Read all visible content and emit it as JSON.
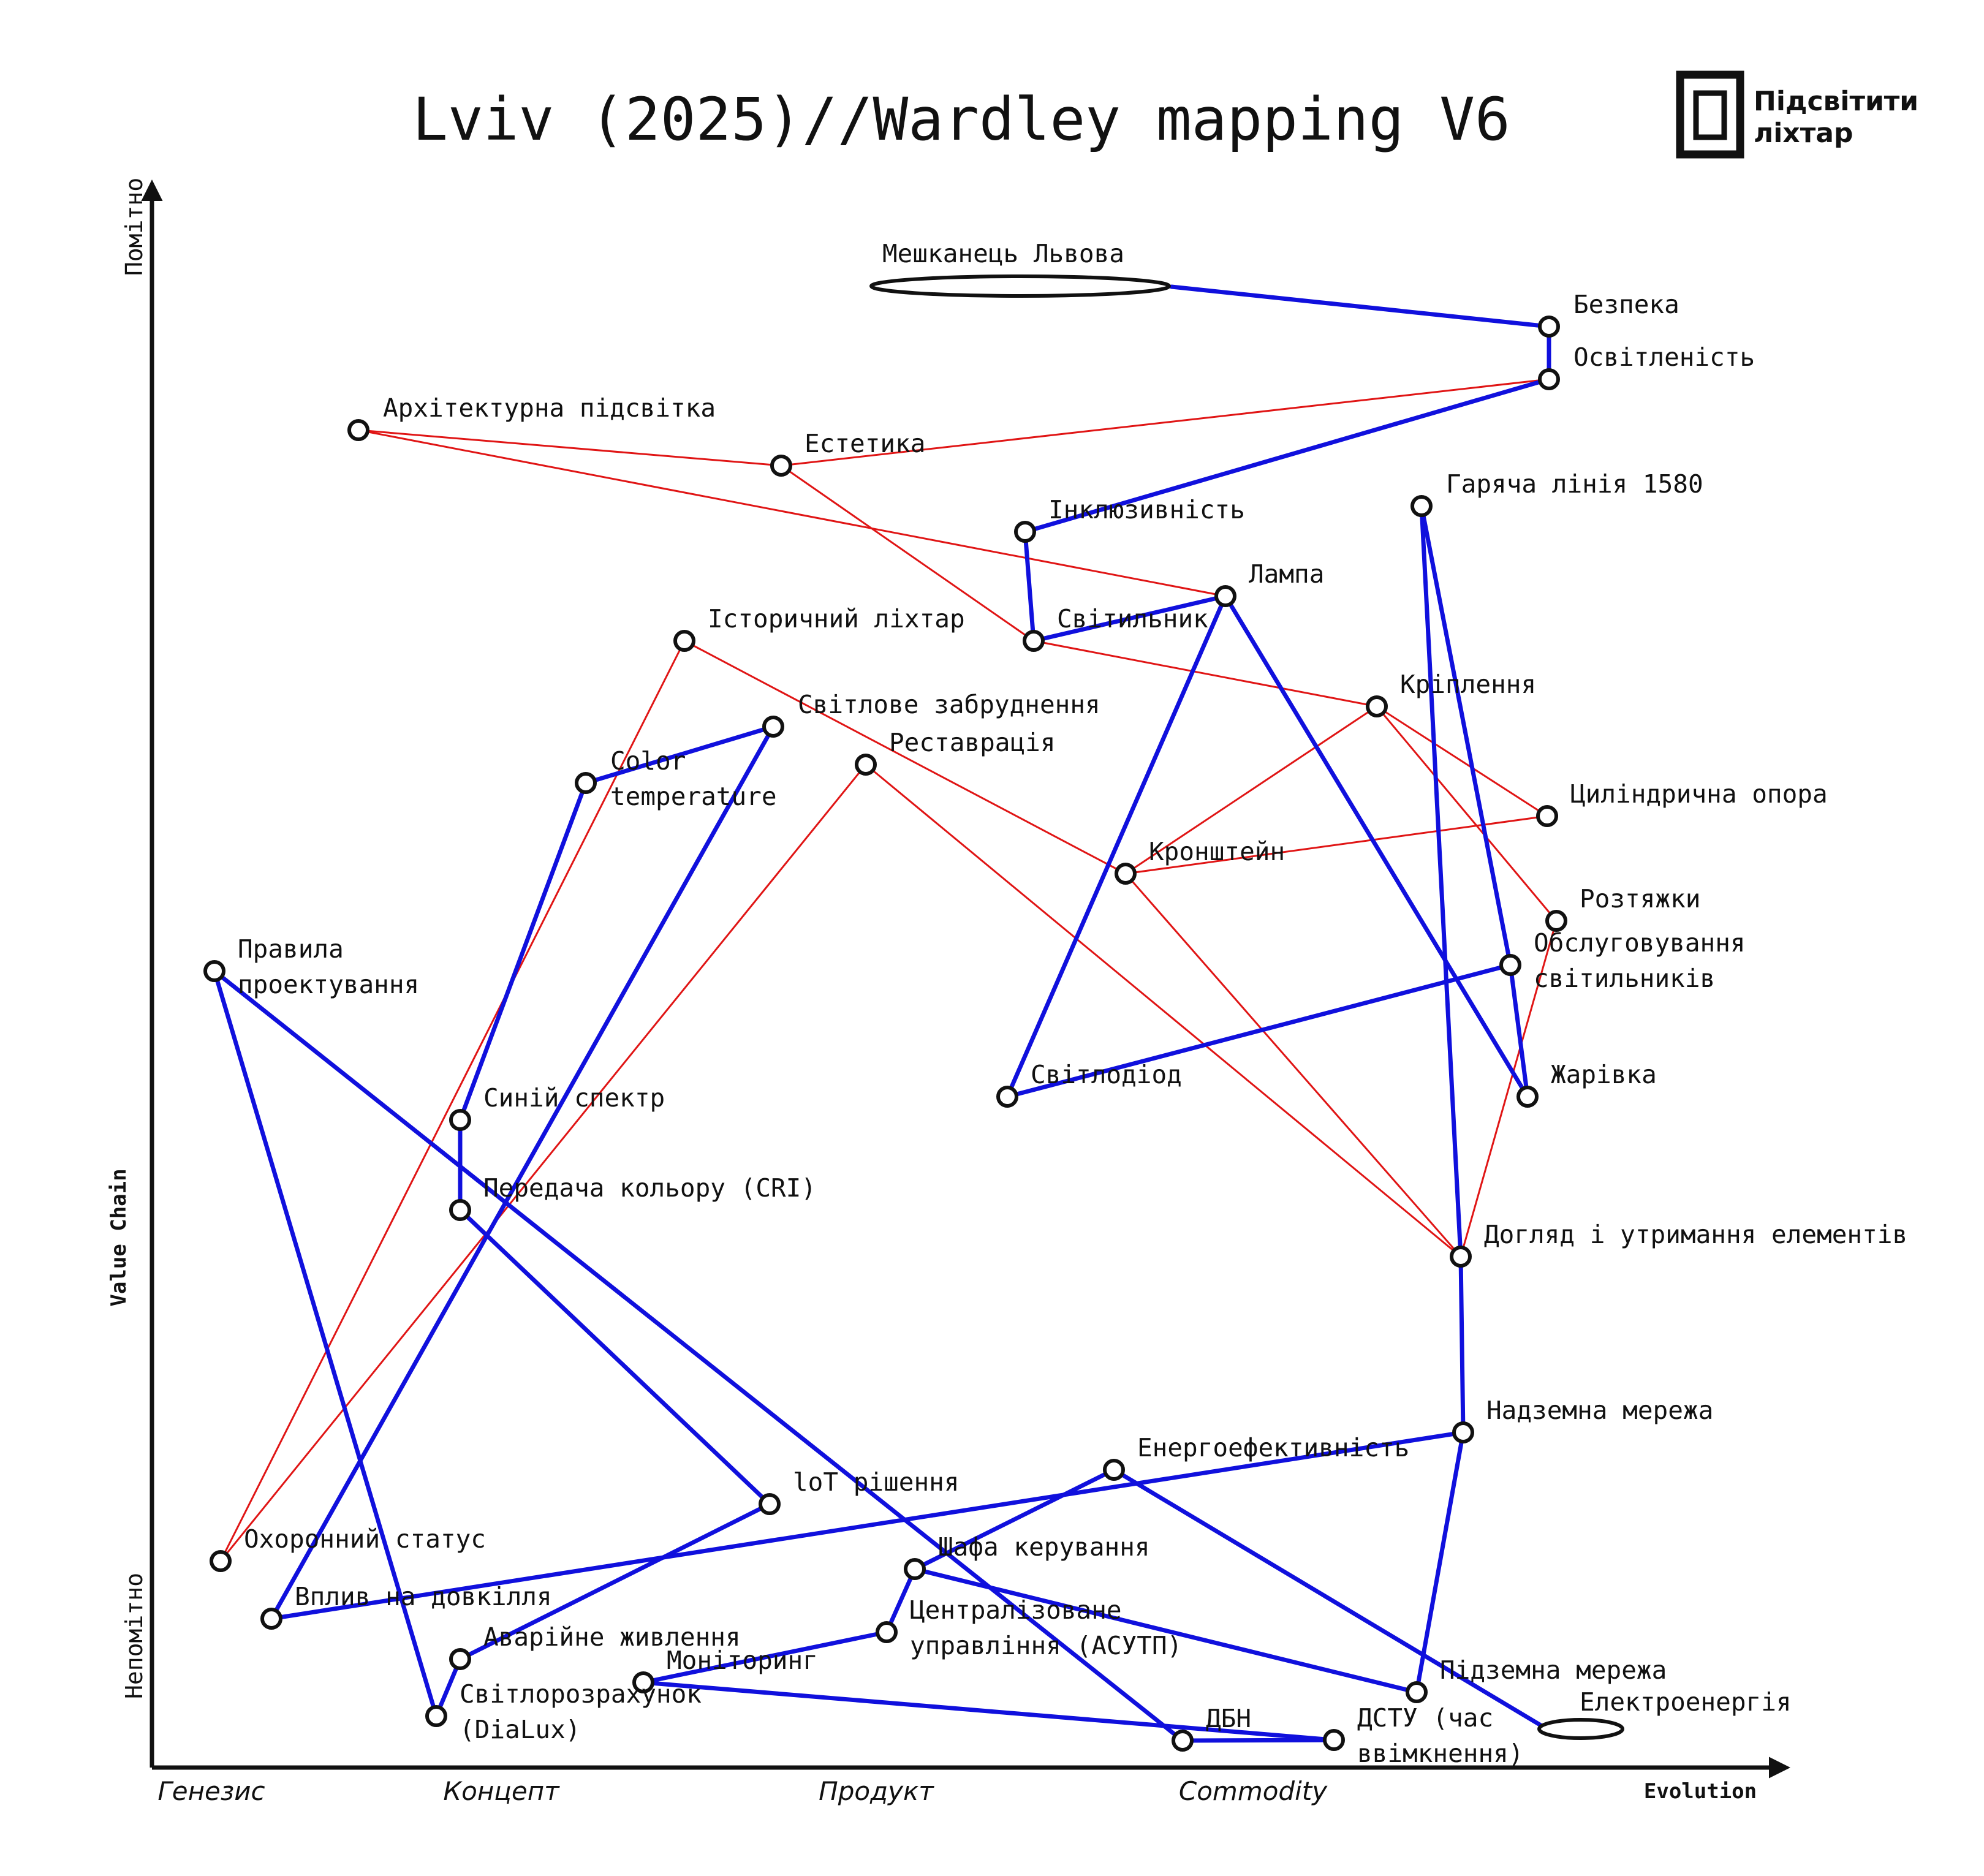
{
  "title": "Lviv (2025)//Wardley mapping V6",
  "brand": {
    "line1": "Підсвітити",
    "line2": "ліхтар",
    "icon": "frame-logo-icon"
  },
  "axes": {
    "y_top": "Помітно",
    "y_bottom": "Непомітно",
    "y_title": "Value Chain",
    "x_title": "Evolution",
    "stages": [
      "Генезис",
      "Концепт",
      "Продукт",
      "Commodity"
    ]
  },
  "colors": {
    "dependency": "#1010dd",
    "relation": "#e01515",
    "node_stroke": "#111111"
  },
  "user": {
    "label": "Мешканець Львова"
  },
  "energy": {
    "label": "Електроенергія"
  },
  "nodes": [
    {
      "id": "bezpeka",
      "label": [
        "Безпека"
      ]
    },
    {
      "id": "osvitl",
      "label": [
        "Освітленість"
      ]
    },
    {
      "id": "arch",
      "label": [
        "Архітектурна підсвітка"
      ]
    },
    {
      "id": "estet",
      "label": [
        "Естетика"
      ]
    },
    {
      "id": "inkl",
      "label": [
        "Інклюзивність"
      ]
    },
    {
      "id": "hotline",
      "label": [
        "Гаряча лінія 1580"
      ]
    },
    {
      "id": "lampa",
      "label": [
        "Лампа"
      ]
    },
    {
      "id": "hist",
      "label": [
        "Історичний ліхтар"
      ]
    },
    {
      "id": "svitylnyk",
      "label": [
        "Світильник"
      ]
    },
    {
      "id": "kripl",
      "label": [
        "Кріплення"
      ]
    },
    {
      "id": "zabrud",
      "label": [
        "Світлове забруднення"
      ]
    },
    {
      "id": "color",
      "label": [
        "Color",
        "temperature"
      ]
    },
    {
      "id": "restav",
      "label": [
        "Реставрація"
      ]
    },
    {
      "id": "cylinder",
      "label": [
        "Циліндрична опора"
      ]
    },
    {
      "id": "kronsh",
      "label": [
        "Кронштейн"
      ]
    },
    {
      "id": "roztyazh",
      "label": [
        "Розтяжки"
      ]
    },
    {
      "id": "pravyla",
      "label": [
        "Правила",
        "проектування"
      ]
    },
    {
      "id": "obslug",
      "label": [
        "Обслуговування",
        "світильників"
      ]
    },
    {
      "id": "svitlodiod",
      "label": [
        "Світлодіод"
      ]
    },
    {
      "id": "zharivka",
      "label": [
        "Жарівка"
      ]
    },
    {
      "id": "syniy",
      "label": [
        "Синій спектр"
      ]
    },
    {
      "id": "cri",
      "label": [
        "Передача кольору (CRI)"
      ]
    },
    {
      "id": "dohlyad",
      "label": [
        "Догляд і утримання елементів"
      ]
    },
    {
      "id": "nadzemna",
      "label": [
        "Надземна мережа"
      ]
    },
    {
      "id": "energo",
      "label": [
        "Енергоефективність"
      ]
    },
    {
      "id": "iot",
      "label": [
        "loT рішення"
      ]
    },
    {
      "id": "okhor",
      "label": [
        "Охоронний статус"
      ]
    },
    {
      "id": "shafa",
      "label": [
        "Шафа керування"
      ]
    },
    {
      "id": "vplyv",
      "label": [
        "Вплив на довкілля"
      ]
    },
    {
      "id": "tsentr",
      "label": [
        "Централізоване",
        "управління (АСУТП)"
      ]
    },
    {
      "id": "avar",
      "label": [
        "Аварійне живлення"
      ]
    },
    {
      "id": "monit",
      "label": [
        "Моніторинг"
      ]
    },
    {
      "id": "pidzem",
      "label": [
        "Підземна мережа"
      ]
    },
    {
      "id": "dialux",
      "label": [
        "Світлорозрахунок",
        "(DiaLux)"
      ]
    },
    {
      "id": "dbn",
      "label": [
        "ДБН"
      ]
    },
    {
      "id": "dstu",
      "label": [
        "ДСТУ (час",
        "ввімкнення)"
      ]
    }
  ],
  "blue_links": [
    [
      "user",
      "bezpeka"
    ],
    [
      "bezpeka",
      "osvitl"
    ],
    [
      "osvitl",
      "inkl"
    ],
    [
      "inkl",
      "svitylnyk"
    ],
    [
      "svitylnyk",
      "lampa"
    ],
    [
      "lampa",
      "svitlodiod"
    ],
    [
      "lampa",
      "zharivka"
    ],
    [
      "svitlodiod",
      "obslug"
    ],
    [
      "hotline",
      "obslug"
    ],
    [
      "obslug",
      "zharivka"
    ],
    [
      "hotline",
      "dohlyad"
    ],
    [
      "dohlyad",
      "nadzemna"
    ],
    [
      "nadzemna",
      "vplyv"
    ],
    [
      "nadzemna",
      "pidzem"
    ],
    [
      "color",
      "zabrud"
    ],
    [
      "color",
      "syniy"
    ],
    [
      "syniy",
      "cri"
    ],
    [
      "cri",
      "iot"
    ],
    [
      "iot",
      "avar"
    ],
    [
      "avar",
      "dialux"
    ],
    [
      "zabrud",
      "vplyv"
    ],
    [
      "pravyla",
      "dialux"
    ],
    [
      "pravyla",
      "dbn"
    ],
    [
      "dbn",
      "dstu"
    ],
    [
      "monit",
      "dstu"
    ],
    [
      "monit",
      "tsentr"
    ],
    [
      "tsentr",
      "shafa"
    ],
    [
      "shafa",
      "energo"
    ],
    [
      "shafa",
      "pidzem"
    ],
    [
      "energo",
      "energy"
    ]
  ],
  "red_links": [
    [
      "arch",
      "estet"
    ],
    [
      "estet",
      "osvitl"
    ],
    [
      "arch",
      "lampa"
    ],
    [
      "estet",
      "svitylnyk"
    ],
    [
      "svitylnyk",
      "kripl"
    ],
    [
      "kripl",
      "kronsh"
    ],
    [
      "kripl",
      "cylinder"
    ],
    [
      "kripl",
      "roztyazh"
    ],
    [
      "kronsh",
      "cylinder"
    ],
    [
      "roztyazh",
      "dohlyad"
    ],
    [
      "hist",
      "kronsh"
    ],
    [
      "hist",
      "okhor"
    ],
    [
      "restav",
      "okhor"
    ],
    [
      "restav",
      "dohlyad"
    ],
    [
      "kronsh",
      "dohlyad"
    ]
  ]
}
